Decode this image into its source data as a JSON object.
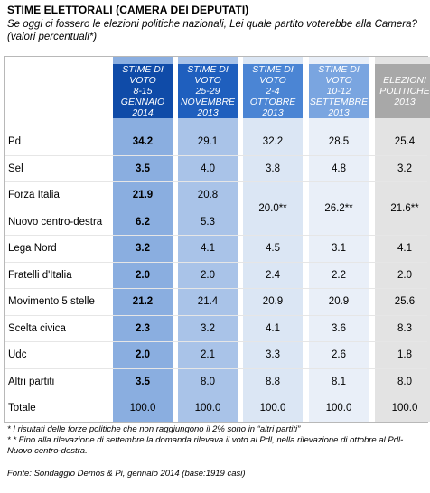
{
  "header": {
    "title": "STIME ELETTORALI (CAMERA DEI DEPUTATI)",
    "subtitle": "Se oggi ci fossero le elezioni politiche nazionali, Lei quale partito voterebbe alla Camera? (valori percentuali*)"
  },
  "colors": {
    "col1": "#8aaee0",
    "col2": "#a9c3e8",
    "col3": "#dbe6f4",
    "col4": "#e9eff8",
    "col5": "#e3e3e3",
    "head1": "#0f4ba8",
    "head2": "#1f5fbe",
    "head3": "#4b85d4",
    "head4": "#7aa5e0",
    "head5": "#a8a8a8"
  },
  "chart_data": {
    "type": "table",
    "columns": [
      {
        "lines": [
          "STIME DI",
          "VOTO",
          "8-15",
          "gennaio",
          "2014"
        ]
      },
      {
        "lines": [
          "STIME DI",
          "VOTO",
          "25-29",
          "novembre",
          "2013"
        ]
      },
      {
        "lines": [
          "STIME DI",
          "VOTO",
          "2-4",
          "ottobre",
          "2013"
        ]
      },
      {
        "lines": [
          "STIME DI",
          "VOTO",
          "10-12",
          "settembre",
          "2013"
        ]
      },
      {
        "lines": [
          "ELEZIONI",
          "POLITICHE",
          "2013"
        ]
      }
    ],
    "rows": [
      {
        "label": "Pd",
        "values": [
          "34.2",
          "29.1",
          "32.2",
          "28.5",
          "25.4"
        ]
      },
      {
        "label": "Sel",
        "values": [
          "3.5",
          "4.0",
          "3.8",
          "4.8",
          "3.2"
        ]
      },
      {
        "label": "Forza Italia",
        "values": [
          "21.9",
          "20.8",
          "",
          "",
          ""
        ]
      },
      {
        "label": "Nuovo centro-destra",
        "values": [
          "6.2",
          "5.3",
          "",
          "",
          ""
        ]
      },
      {
        "label": "Lega Nord",
        "values": [
          "3.2",
          "4.1",
          "4.5",
          "3.1",
          "4.1"
        ]
      },
      {
        "label": "Fratelli d'Italia",
        "values": [
          "2.0",
          "2.0",
          "2.4",
          "2.2",
          "2.0"
        ]
      },
      {
        "label": "Movimento 5 stelle",
        "values": [
          "21.2",
          "21.4",
          "20.9",
          "20.9",
          "25.6"
        ]
      },
      {
        "label": "Scelta civica",
        "values": [
          "2.3",
          "3.2",
          "4.1",
          "3.6",
          "8.3"
        ]
      },
      {
        "label": "Udc",
        "values": [
          "2.0",
          "2.1",
          "3.3",
          "2.6",
          "1.8"
        ]
      },
      {
        "label": "Altri partiti",
        "values": [
          "3.5",
          "8.0",
          "8.8",
          "8.1",
          "8.0"
        ]
      },
      {
        "label": "Totale",
        "values": [
          "100.0",
          "100.0",
          "100.0",
          "100.0",
          "100.0"
        ]
      }
    ],
    "merged": [
      "20.0**",
      "26.2**",
      "21.6**"
    ]
  },
  "notes": {
    "note1": "* I risultati delle forze politiche che non raggiungono il 2% sono in “altri partiti”",
    "note2": "* * Fino alla rilevazione di settembre la domanda rilevava il voto al Pdl, nella rilevazione di ottobre al Pdl-Nuovo centro-destra.",
    "source": "Fonte: Sondaggio Demos & Pi, gennaio 2014 (base:1919 casi)"
  }
}
